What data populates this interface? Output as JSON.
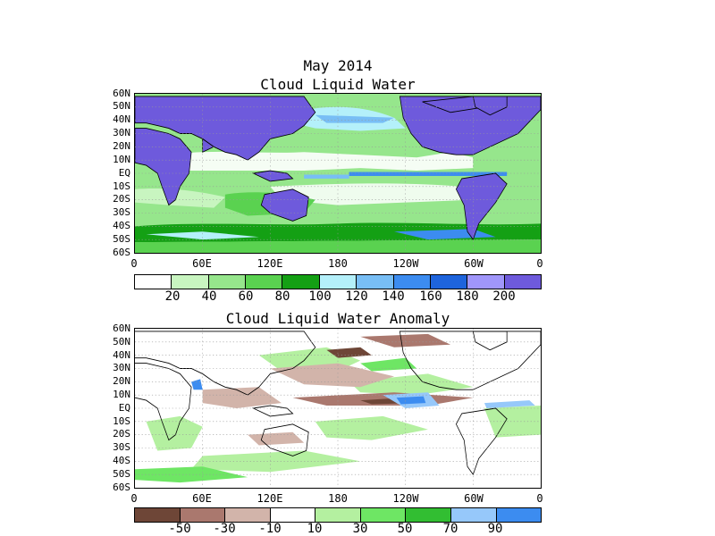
{
  "header": {
    "period": "May 2014"
  },
  "panels": [
    {
      "id": "clw",
      "title": "Cloud Liquid Water",
      "lat_labels": [
        "60N",
        "50N",
        "40N",
        "30N",
        "20N",
        "10N",
        "EQ",
        "10S",
        "20S",
        "30S",
        "40S",
        "50S",
        "60S"
      ],
      "lon_labels": [
        "0",
        "60E",
        "120E",
        "180",
        "120W",
        "60W",
        "0"
      ],
      "colorbar": {
        "colors": [
          "#ffffff",
          "#c8f5c0",
          "#96e68c",
          "#5ad250",
          "#14a014",
          "#b4f0fa",
          "#78bef5",
          "#3c8cf0",
          "#1e64dc",
          "#a096fa",
          "#6e5adc"
        ],
        "tick_labels": [
          "20",
          "40",
          "60",
          "80",
          "100",
          "120",
          "140",
          "160",
          "180",
          "200"
        ],
        "land_color": "#6e5adc"
      }
    },
    {
      "id": "anom",
      "title": "Cloud Liquid Water Anomaly",
      "lat_labels": [
        "60N",
        "50N",
        "40N",
        "30N",
        "20N",
        "10N",
        "EQ",
        "10S",
        "20S",
        "30S",
        "40S",
        "50S",
        "60S"
      ],
      "lon_labels": [
        "0",
        "60E",
        "120E",
        "180",
        "120W",
        "60W",
        "0"
      ],
      "colorbar": {
        "colors": [
          "#6e4637",
          "#aa786e",
          "#d2b4aa",
          "#ffffff",
          "#b4f0a0",
          "#6ee664",
          "#32be32",
          "#96c8fa",
          "#3c8cf0"
        ],
        "tick_labels": [
          "-50",
          "-30",
          "-10",
          "10",
          "30",
          "50",
          "70",
          "90"
        ],
        "land_color": "#ffffff"
      }
    }
  ]
}
